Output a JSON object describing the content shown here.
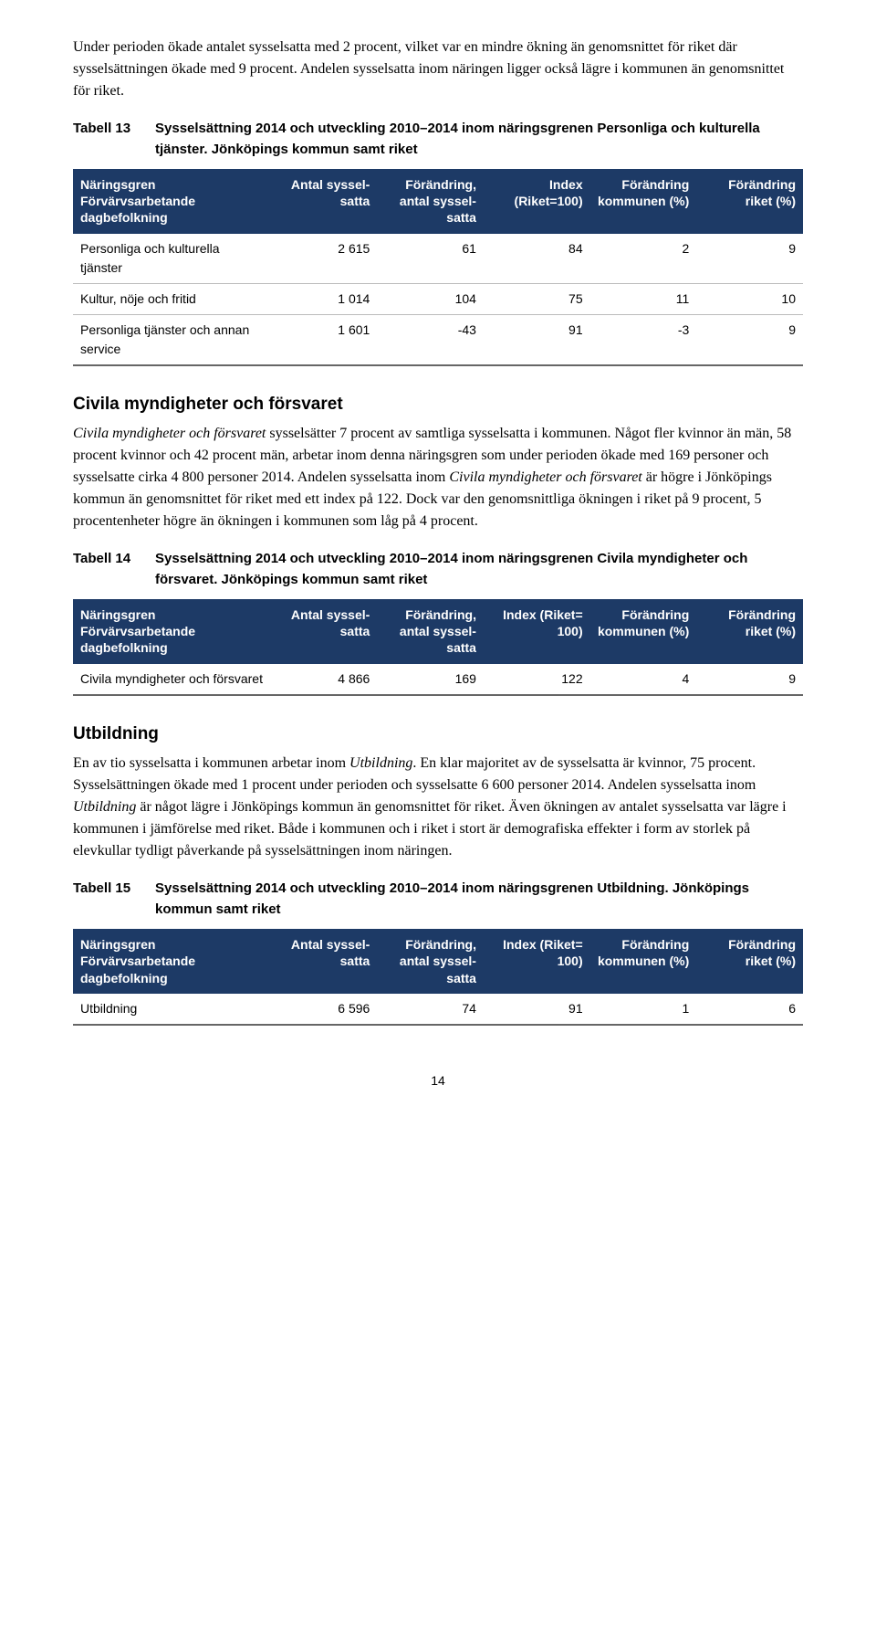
{
  "intro_para": "Under perioden ökade antalet sysselsatta med 2 procent, vilket var en mindre ökning än genomsnittet för riket där sysselsättningen ökade med 9 procent. Andelen sysselsatta inom näringen ligger också lägre i kommunen än genomsnittet för riket.",
  "table13": {
    "caption_num": "Tabell 13",
    "caption_txt": "Sysselsättning 2014 och utveckling 2010–2014 inom näringsgrenen Personliga och kulturella tjänster. Jönköpings kommun samt riket",
    "headers": {
      "c0": "Näringsgren Förvärvsarbetande dagbefolkning",
      "c1": "Antal syssel­satta",
      "c2": "Förändring, antal syssel­satta",
      "c3": "Index (Riket=100)",
      "c4": "Förändring kommunen (%)",
      "c5": "Förändring riket (%)"
    },
    "rows": [
      {
        "label": "Personliga och kulturella tjänster",
        "v": [
          "2 615",
          "61",
          "84",
          "2",
          "9"
        ]
      },
      {
        "label": "Kultur, nöje och fritid",
        "v": [
          "1 014",
          "104",
          "75",
          "11",
          "10"
        ]
      },
      {
        "label": "Personliga tjänster och annan service",
        "v": [
          "1 601",
          "-43",
          "91",
          "-3",
          "9"
        ]
      }
    ]
  },
  "section2": {
    "title": "Civila myndigheter och försvaret",
    "para_parts": [
      {
        "italic": true,
        "text": "Civila myndigheter och försvaret"
      },
      {
        "italic": false,
        "text": " sysselsätter 7 procent av samtliga sysselsatta i kommunen. Något fler kvinnor än män, 58 procent kvinnor och 42 procent män, arbetar inom denna näringsgren som under perioden ökade med 169 personer och sysselsatte cirka 4 800 personer 2014. Andelen sysselsatta inom "
      },
      {
        "italic": true,
        "text": "Civila myndigheter och försvaret"
      },
      {
        "italic": false,
        "text": " är högre i Jönköpings kommun än genomsnittet för riket med ett index på 122. Dock var den genomsnittliga ökningen i riket på 9 procent, 5 procentenheter högre än ökningen i kommunen som låg på 4 procent."
      }
    ]
  },
  "table14": {
    "caption_num": "Tabell 14",
    "caption_txt": "Sysselsättning 2014 och utveckling 2010–2014 inom näringsgrenen Civila myndigheter och försvaret. Jönköpings kommun samt riket",
    "headers": {
      "c0": "Näringsgren Förvärvsarbetande dagbefolkning",
      "c1": "Antal syssel­satta",
      "c2": "Förändring, antal syssel­satta",
      "c3": "Index (Riket= 100)",
      "c4": "Förändring kommunen (%)",
      "c5": "Förändring riket (%)"
    },
    "rows": [
      {
        "label": "Civila myndigheter och försvaret",
        "v": [
          "4 866",
          "169",
          "122",
          "4",
          "9"
        ]
      }
    ]
  },
  "section3": {
    "title": "Utbildning",
    "para_parts": [
      {
        "italic": false,
        "text": "En av tio sysselsatta i kommunen arbetar inom "
      },
      {
        "italic": true,
        "text": "Utbildning"
      },
      {
        "italic": false,
        "text": ". En klar majoritet av de sysselsatta är kvinnor, 75 procent. Sysselsättningen ökade med 1 procent under perioden och sysselsatte 6 600 personer 2014. Andelen sysselsatta inom "
      },
      {
        "italic": true,
        "text": "Utbildning"
      },
      {
        "italic": false,
        "text": " är något lägre i Jönköpings kommun än genomsnittet för riket. Även ökningen av antalet sysselsatta var lägre i kommunen i jämförelse med riket. Både i kommunen och i riket i stort är demografiska effekter i form av storlek på elevkullar tydligt påverkande på sysselsättningen inom näringen."
      }
    ]
  },
  "table15": {
    "caption_num": "Tabell 15",
    "caption_txt": "Sysselsättning 2014 och utveckling 2010–2014 inom näringsgrenen Utbildning. Jönköpings kommun samt riket",
    "headers": {
      "c0": "Näringsgren Förvärvsarbetande dagbefolkning",
      "c1": "Antal syssel­satta",
      "c2": "Förändring, antal syssel­satta",
      "c3": "Index (Riket= 100)",
      "c4": "Förändring kommunen (%)",
      "c5": "Förändring riket (%)"
    },
    "rows": [
      {
        "label": "Utbildning",
        "v": [
          "6 596",
          "74",
          "91",
          "1",
          "6"
        ]
      }
    ]
  },
  "page_number": "14"
}
